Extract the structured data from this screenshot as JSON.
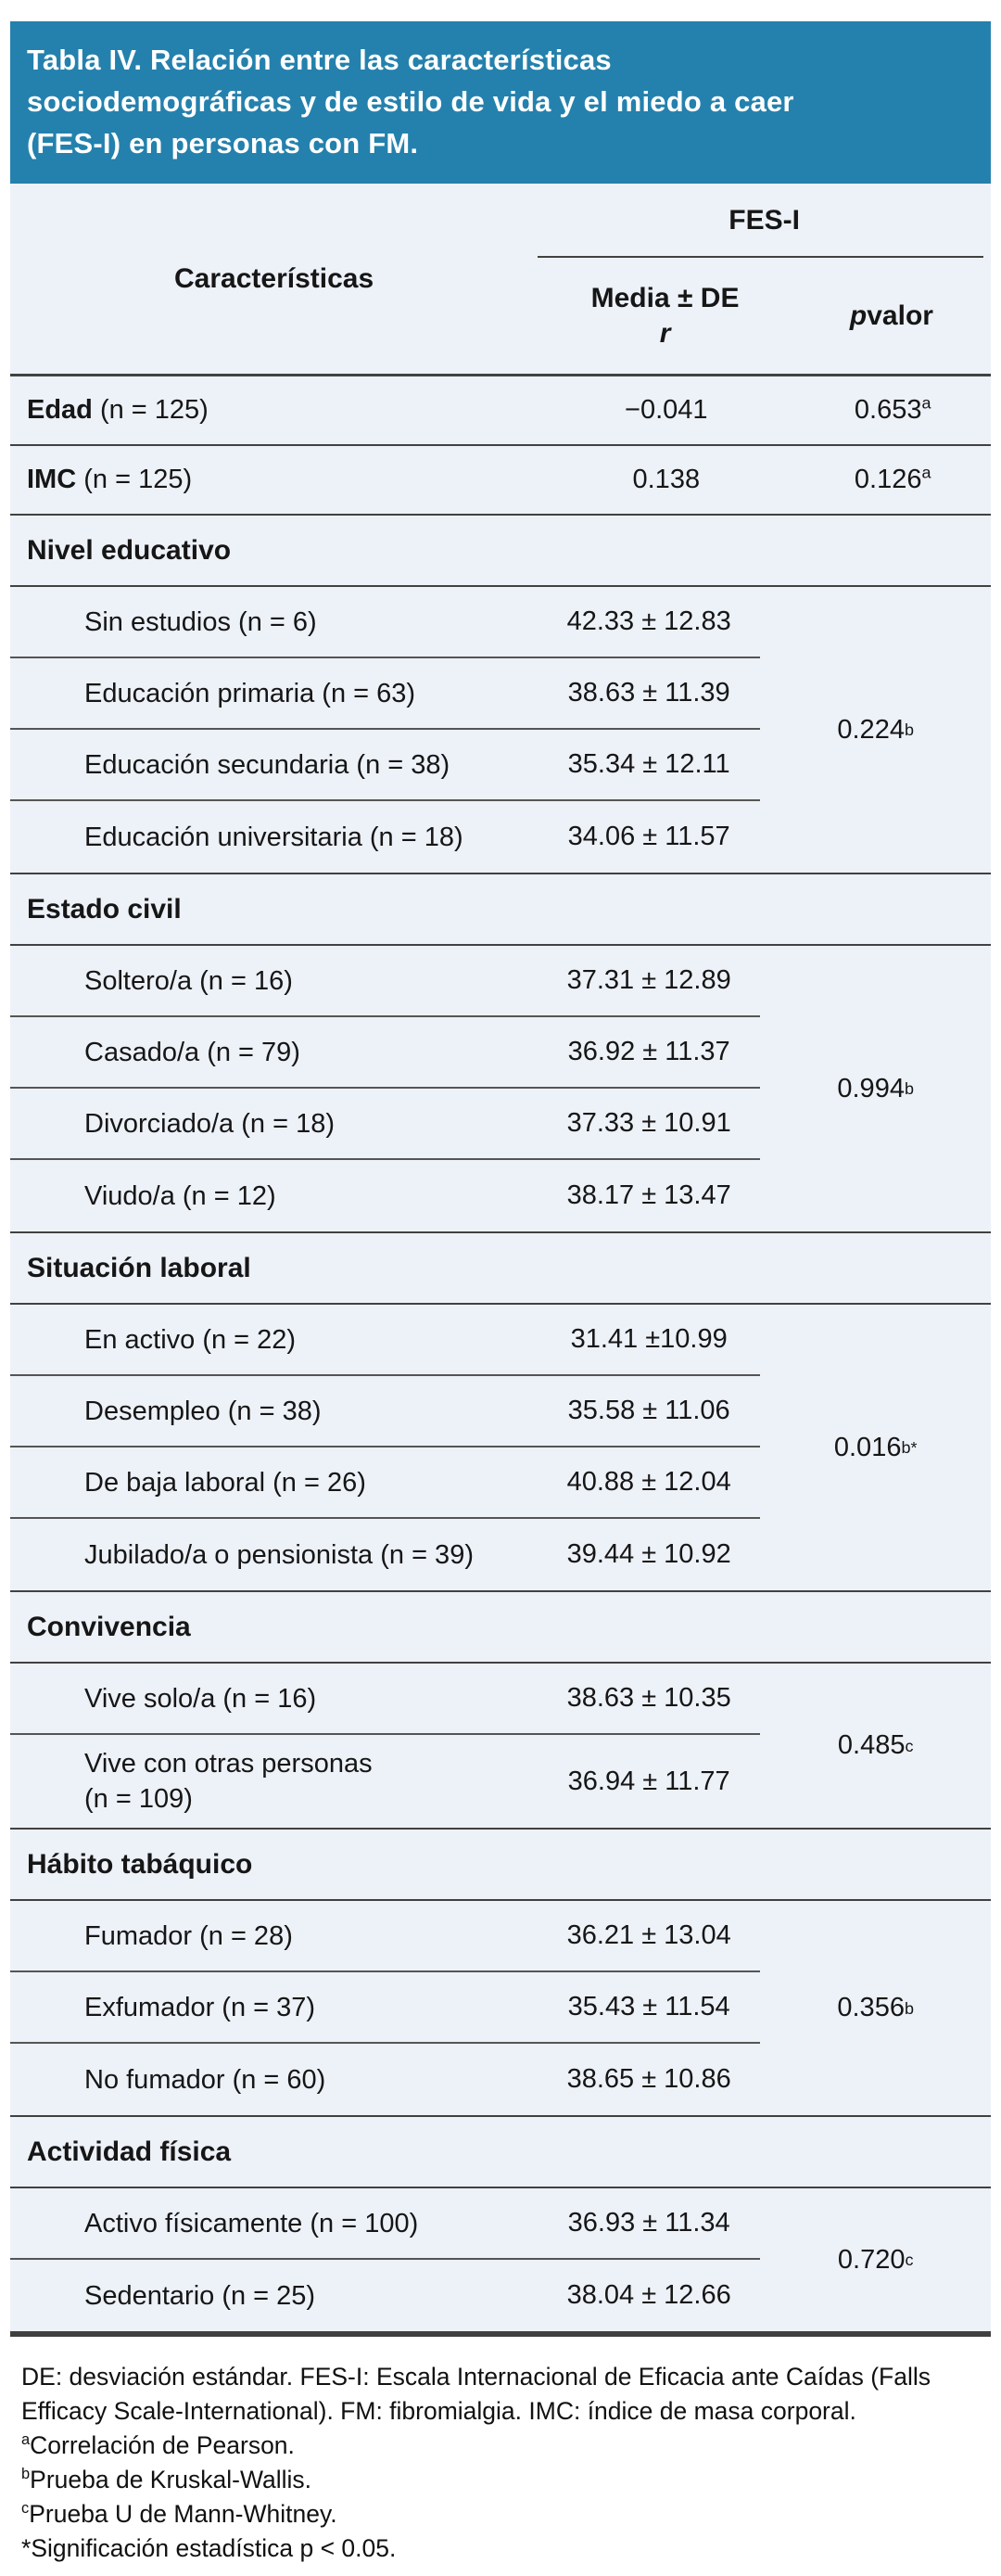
{
  "title": "Tabla IV. Relación entre las características\nsociodemográficas y de estilo de vida y el miedo a caer\n(FES-I) en personas con FM.",
  "header": {
    "col1": "Características",
    "span": "FES-I",
    "col2_line1": "Media ± DE",
    "col2_line2": "r",
    "col3_italic": "p",
    "col3_rest": " valor"
  },
  "rows": [
    {
      "type": "simple",
      "bold": "Edad",
      "rest": " (n = 125)",
      "value": "−0.041",
      "p": {
        "val": "0.653",
        "sup": "a"
      }
    },
    {
      "type": "simple",
      "bold": "IMC",
      "rest": " (n = 125)",
      "value": "0.138",
      "p": {
        "val": "0.126",
        "sup": "a"
      }
    },
    {
      "type": "section",
      "label": "Nivel educativo"
    },
    {
      "type": "group",
      "p": {
        "val": "0.224",
        "sup": "b"
      },
      "items": [
        {
          "label": "Sin estudios (n = 6)",
          "value": "42.33 ± 12.83"
        },
        {
          "label": "Educación primaria (n = 63)",
          "value": "38.63 ± 11.39"
        },
        {
          "label": "Educación secundaria (n = 38)",
          "value": "35.34 ± 12.11"
        },
        {
          "label": "Educación universitaria (n = 18)",
          "value": "34.06 ± 11.57"
        }
      ]
    },
    {
      "type": "section",
      "label": "Estado civil"
    },
    {
      "type": "group",
      "p": {
        "val": "0.994",
        "sup": "b"
      },
      "items": [
        {
          "label": "Soltero/a (n = 16)",
          "value": "37.31 ± 12.89"
        },
        {
          "label": "Casado/a (n = 79)",
          "value": "36.92 ± 11.37"
        },
        {
          "label": "Divorciado/a (n = 18)",
          "value": "37.33 ± 10.91"
        },
        {
          "label": "Viudo/a (n = 12)",
          "value": "38.17 ± 13.47"
        }
      ]
    },
    {
      "type": "section",
      "label": "Situación laboral"
    },
    {
      "type": "group",
      "p": {
        "val": "0.016",
        "sup": "b*"
      },
      "items": [
        {
          "label": "En activo (n = 22)",
          "value": "31.41 ±10.99"
        },
        {
          "label": "Desempleo (n = 38)",
          "value": "35.58 ± 11.06"
        },
        {
          "label": "De baja laboral (n = 26)",
          "value": "40.88 ± 12.04"
        },
        {
          "label": "Jubilado/a o pensionista (n = 39)",
          "value": "39.44 ± 10.92"
        }
      ]
    },
    {
      "type": "section",
      "label": "Convivencia"
    },
    {
      "type": "group",
      "p": {
        "val": "0.485",
        "sup": "c"
      },
      "items": [
        {
          "label": "Vive solo/a (n = 16)",
          "value": "38.63 ± 10.35"
        },
        {
          "label": "Vive con otras personas\n(n = 109)",
          "value": "36.94 ± 11.77"
        }
      ]
    },
    {
      "type": "section",
      "label": "Hábito tabáquico"
    },
    {
      "type": "group",
      "p": {
        "val": "0.356",
        "sup": "b"
      },
      "items": [
        {
          "label": "Fumador (n = 28)",
          "value": "36.21 ± 13.04"
        },
        {
          "label": "Exfumador (n = 37)",
          "value": "35.43 ± 11.54"
        },
        {
          "label": "No fumador (n = 60)",
          "value": "38.65 ± 10.86"
        }
      ]
    },
    {
      "type": "section",
      "label": "Actividad física"
    },
    {
      "type": "group",
      "p": {
        "val": "0.720",
        "sup": "c"
      },
      "items": [
        {
          "label": "Activo físicamente (n = 100)",
          "value": "36.93 ± 11.34"
        },
        {
          "label": "Sedentario (n = 25)",
          "value": "38.04 ± 12.66"
        }
      ]
    }
  ],
  "footnotes": [
    {
      "sup": "",
      "text": "DE: desviación estándar. FES-I: Escala Internacional de Eficacia ante Caídas (Falls"
    },
    {
      "sup": "",
      "text": "Efficacy Scale-International). FM: fibromialgia. IMC: índice de masa corporal."
    },
    {
      "sup": "a",
      "text": "Correlación de Pearson."
    },
    {
      "sup": "b",
      "text": "Prueba de Kruskal-Wallis."
    },
    {
      "sup": "c",
      "text": "Prueba U de Mann-Whitney."
    },
    {
      "sup": "",
      "text": "*Significación estadística p < 0.05."
    }
  ],
  "colors": {
    "title_bg": "#2481AD",
    "title_text": "#FFFFFF",
    "table_bg": "#EDF1F8",
    "rule": "#414141",
    "text": "#161616"
  }
}
